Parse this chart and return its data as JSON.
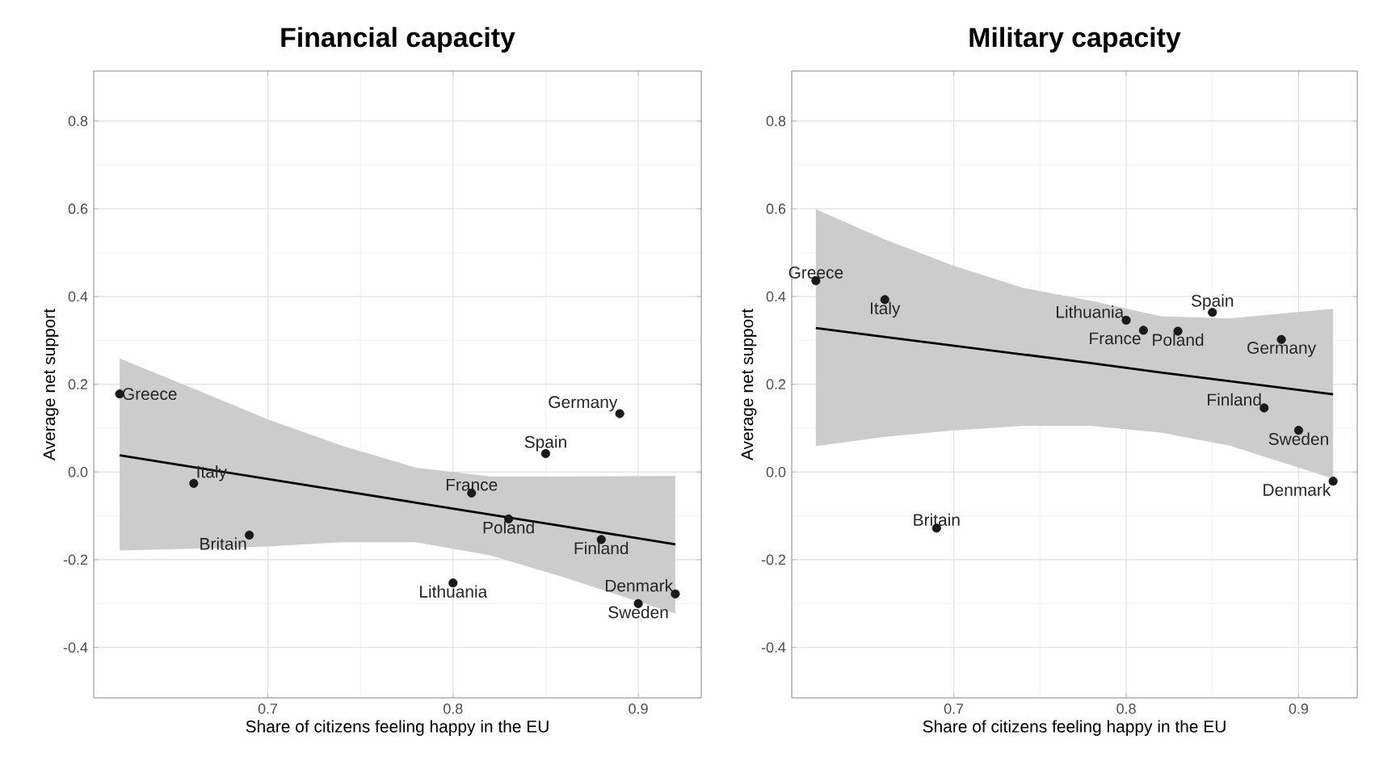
{
  "chart_data": [
    {
      "type": "scatter",
      "title": "Financial capacity",
      "xlabel": "Share of citizens feeling happy in the EU",
      "ylabel": "Average net support",
      "xlim": [
        0.606,
        0.934
      ],
      "ylim": [
        -0.515,
        0.914
      ],
      "xticks": [
        0.7,
        0.8,
        0.9
      ],
      "yticks": [
        -0.4,
        -0.2,
        {
          "value": 0,
          "label": "0.0"
        },
        0.2,
        0.4,
        0.6,
        0.8
      ],
      "grid": true,
      "series": [
        {
          "marker": "circle",
          "color": "#1a1a1a",
          "x": [
            0.62,
            0.66,
            0.69,
            0.8,
            0.81,
            0.83,
            0.85,
            0.88,
            0.89,
            0.9,
            0.92
          ],
          "values": [
            0.178,
            -0.026,
            -0.144,
            -0.253,
            -0.048,
            -0.107,
            0.042,
            -0.154,
            0.133,
            -0.3,
            -0.278
          ]
        },
        {
          "type": "line",
          "color": "#000000",
          "x": [
            0.62,
            0.66,
            0.7,
            0.74,
            0.78,
            0.82,
            0.86,
            0.92
          ],
          "values": [
            0.038,
            0.011,
            -0.016,
            -0.043,
            -0.07,
            -0.097,
            -0.124,
            -0.165
          ],
          "lower": [
            -0.179,
            -0.175,
            -0.17,
            -0.16,
            -0.16,
            -0.19,
            -0.24,
            -0.323
          ],
          "upper": [
            0.259,
            0.19,
            0.12,
            0.06,
            0.01,
            -0.01,
            -0.01,
            -0.009
          ]
        }
      ],
      "annotations": [
        {
          "text": "Greece",
          "x": 0.62,
          "y": 0.178
        },
        {
          "text": "Italy",
          "x": 0.66,
          "y": -0.026
        },
        {
          "text": "Britain",
          "x": 0.69,
          "y": -0.144
        },
        {
          "text": "Lithuania",
          "x": 0.8,
          "y": -0.253
        },
        {
          "text": "France",
          "x": 0.81,
          "y": -0.048
        },
        {
          "text": "Poland",
          "x": 0.83,
          "y": -0.107
        },
        {
          "text": "Spain",
          "x": 0.85,
          "y": 0.042
        },
        {
          "text": "Finland",
          "x": 0.88,
          "y": -0.154
        },
        {
          "text": "Germany",
          "x": 0.89,
          "y": 0.133
        },
        {
          "text": "Sweden",
          "x": 0.9,
          "y": -0.3
        },
        {
          "text": "Denmark",
          "x": 0.92,
          "y": -0.278
        }
      ]
    },
    {
      "type": "scatter",
      "title": "Military capacity",
      "xlabel": "Share of citizens feeling happy in the EU",
      "ylabel": "Average net support",
      "xlim": [
        0.606,
        0.934
      ],
      "ylim": [
        -0.515,
        0.914
      ],
      "xticks": [
        0.7,
        0.8,
        0.9
      ],
      "yticks": [
        -0.4,
        -0.2,
        {
          "value": 0,
          "label": "0.0"
        },
        0.2,
        0.4,
        0.6,
        0.8
      ],
      "grid": true,
      "series": [
        {
          "marker": "circle",
          "color": "#1a1a1a",
          "x": [
            0.62,
            0.66,
            0.69,
            0.8,
            0.81,
            0.83,
            0.85,
            0.88,
            0.89,
            0.9,
            0.92
          ],
          "values": [
            0.436,
            0.393,
            -0.128,
            0.346,
            0.323,
            0.321,
            0.364,
            0.146,
            0.302,
            0.095,
            -0.021
          ]
        },
        {
          "type": "line",
          "color": "#000000",
          "x": [
            0.62,
            0.66,
            0.7,
            0.74,
            0.78,
            0.82,
            0.86,
            0.92
          ],
          "values": [
            0.328,
            0.308,
            0.288,
            0.268,
            0.248,
            0.227,
            0.207,
            0.177
          ],
          "lower": [
            0.059,
            0.08,
            0.095,
            0.105,
            0.105,
            0.09,
            0.06,
            -0.015
          ],
          "upper": [
            0.599,
            0.53,
            0.47,
            0.42,
            0.39,
            0.355,
            0.35,
            0.372
          ]
        }
      ],
      "annotations": [
        {
          "text": "Greece",
          "x": 0.62,
          "y": 0.436
        },
        {
          "text": "Italy",
          "x": 0.66,
          "y": 0.393
        },
        {
          "text": "Britain",
          "x": 0.69,
          "y": -0.128
        },
        {
          "text": "Lithuania",
          "x": 0.8,
          "y": 0.346
        },
        {
          "text": "France",
          "x": 0.81,
          "y": 0.323
        },
        {
          "text": "Poland",
          "x": 0.83,
          "y": 0.321
        },
        {
          "text": "Spain",
          "x": 0.85,
          "y": 0.364
        },
        {
          "text": "Finland",
          "x": 0.88,
          "y": 0.146
        },
        {
          "text": "Germany",
          "x": 0.89,
          "y": 0.302
        },
        {
          "text": "Sweden",
          "x": 0.9,
          "y": 0.095
        },
        {
          "text": "Denmark",
          "x": 0.92,
          "y": -0.021
        }
      ]
    }
  ]
}
